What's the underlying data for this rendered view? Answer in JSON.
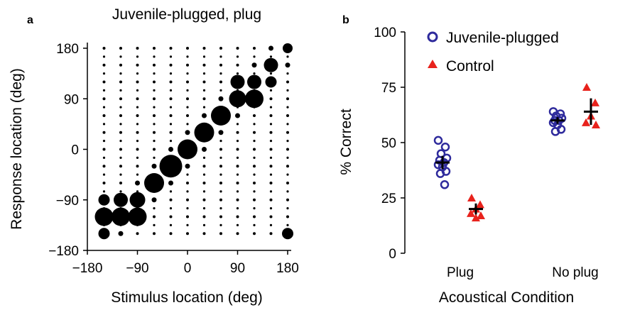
{
  "chart_data": [
    {
      "panel": "a",
      "type": "scatter",
      "title": "Juvenile-plugged, plug",
      "xlabel": "Stimulus location (deg)",
      "ylabel": "Response location (deg)",
      "xlim": [
        -180,
        180
      ],
      "ylim": [
        -180,
        180
      ],
      "xticks": [
        -180,
        -90,
        0,
        90,
        180
      ],
      "yticks": [
        -180,
        -90,
        0,
        90,
        180
      ],
      "xtick_labels": [
        "−180",
        "−90",
        "0",
        "90",
        "180"
      ],
      "ytick_labels": [
        "−180",
        "−90",
        "0",
        "90",
        "180"
      ],
      "grid_x": [
        -150,
        -120,
        -90,
        -60,
        -30,
        0,
        30,
        60,
        90,
        120,
        150,
        180
      ],
      "grid_y": [
        -150,
        -135,
        -120,
        -105,
        -90,
        -75,
        -60,
        -45,
        -30,
        -15,
        0,
        15,
        30,
        45,
        60,
        75,
        90,
        105,
        120,
        135,
        150,
        165,
        180
      ],
      "grid_on": false,
      "marker_sizes": [
        [
          1,
          1,
          1,
          1,
          1,
          1,
          1,
          1,
          1,
          1,
          1,
          1
        ],
        [
          1,
          1,
          1,
          1,
          1,
          1,
          1,
          1,
          1,
          1,
          1,
          1
        ],
        [
          1,
          1,
          1,
          1,
          1,
          1,
          1,
          1,
          1,
          1,
          1,
          1
        ],
        [
          1,
          1,
          1,
          1,
          1,
          1,
          1,
          1,
          1,
          1,
          1,
          1
        ],
        [
          1,
          1,
          1,
          1,
          1,
          1,
          1,
          1,
          1,
          1,
          1,
          1
        ],
        [
          1,
          1,
          1,
          1,
          1,
          1,
          1,
          1,
          1,
          1,
          1,
          1
        ],
        [
          1,
          1,
          1,
          1,
          1,
          1,
          1,
          1,
          1,
          1,
          1,
          1
        ],
        [
          1,
          1,
          1,
          1,
          1,
          1,
          1,
          1,
          1,
          1,
          1,
          1
        ],
        [
          1,
          1,
          1,
          1,
          1,
          1,
          1,
          1,
          1,
          1,
          1,
          1
        ],
        [
          1,
          1,
          1,
          1,
          1,
          1,
          1,
          1,
          1,
          1,
          1,
          1
        ],
        [
          1,
          1,
          1,
          1,
          1,
          1,
          1,
          1,
          1,
          1,
          1,
          1
        ],
        [
          1,
          1,
          1,
          1,
          1,
          1,
          1,
          1,
          1,
          1,
          1,
          1
        ],
        [
          1,
          1,
          1,
          1,
          1,
          1,
          1,
          1,
          1,
          1,
          1,
          1
        ],
        [
          1,
          1,
          1,
          1,
          1,
          1,
          1,
          1,
          1,
          1,
          1,
          1
        ],
        [
          1,
          1,
          1,
          1,
          1,
          1,
          1,
          1,
          1,
          1,
          1,
          1
        ],
        [
          1,
          1,
          1,
          1,
          1,
          1,
          1,
          1,
          1,
          1,
          1,
          1
        ],
        [
          1,
          1,
          1,
          1,
          1,
          1,
          1,
          1,
          1,
          1,
          1,
          1
        ],
        [
          1,
          1,
          1,
          1,
          1,
          1,
          1,
          1,
          1,
          1,
          1,
          1
        ],
        [
          1,
          1,
          1,
          1,
          1,
          1,
          1,
          1,
          1,
          1,
          1,
          1
        ],
        [
          1,
          1,
          1,
          1,
          1,
          1,
          1,
          1,
          1,
          1,
          1,
          1
        ],
        [
          1,
          1,
          1,
          1,
          1,
          1,
          1,
          1,
          1,
          1,
          1,
          1
        ],
        [
          1,
          1,
          1,
          1,
          1,
          1,
          1,
          1,
          1,
          1,
          1,
          1
        ],
        [
          1,
          1,
          1,
          1,
          1,
          1,
          1,
          1,
          1,
          1,
          1,
          1
        ]
      ],
      "points": [
        {
          "x": -150,
          "y": -120,
          "r": 13
        },
        {
          "x": -120,
          "y": -120,
          "r": 13
        },
        {
          "x": -90,
          "y": -120,
          "r": 13
        },
        {
          "x": -150,
          "y": -90,
          "r": 8
        },
        {
          "x": -120,
          "y": -90,
          "r": 10
        },
        {
          "x": -90,
          "y": -90,
          "r": 11
        },
        {
          "x": -60,
          "y": -60,
          "r": 14
        },
        {
          "x": -30,
          "y": -30,
          "r": 16
        },
        {
          "x": 0,
          "y": 0,
          "r": 14
        },
        {
          "x": 30,
          "y": 30,
          "r": 14
        },
        {
          "x": 60,
          "y": 60,
          "r": 14
        },
        {
          "x": 90,
          "y": 90,
          "r": 12
        },
        {
          "x": 120,
          "y": 90,
          "r": 13
        },
        {
          "x": 90,
          "y": 120,
          "r": 10
        },
        {
          "x": 120,
          "y": 120,
          "r": 10
        },
        {
          "x": 150,
          "y": 150,
          "r": 10
        },
        {
          "x": 150,
          "y": 120,
          "r": 8
        },
        {
          "x": -150,
          "y": -150,
          "r": 8
        },
        {
          "x": 180,
          "y": -150,
          "r": 8
        },
        {
          "x": 180,
          "y": 180,
          "r": 7
        }
      ]
    },
    {
      "panel": "b",
      "type": "scatter",
      "title": "",
      "xlabel": "Acoustical Condition",
      "ylabel": "% Correct",
      "categories": [
        "Plug",
        "No plug"
      ],
      "ylim": [
        0,
        100
      ],
      "yticks": [
        0,
        25,
        50,
        75,
        100
      ],
      "grid_on": false,
      "legend_position": "top-left",
      "series": [
        {
          "name": "Juvenile-plugged",
          "marker": "open-circle",
          "color": "#2e2a9c",
          "values": {
            "Plug": [
              51,
              48,
              45,
              43,
              42,
              41,
              40,
              39,
              37,
              36,
              31
            ],
            "No plug": [
              64,
              63,
              62,
              61,
              60,
              60,
              59,
              58,
              56,
              55
            ]
          },
          "means": {
            "Plug": 41,
            "No plug": 60
          },
          "err": {
            "Plug": 3,
            "No plug": 1.5
          }
        },
        {
          "name": "Control",
          "marker": "filled-triangle",
          "color": "#e8221c",
          "values": {
            "Plug": [
              25,
              22,
              20,
              18,
              17,
              16
            ],
            "No plug": [
              75,
              68,
              62,
              59,
              58
            ]
          },
          "means": {
            "Plug": 20,
            "No plug": 64
          },
          "err": {
            "Plug": 2.5,
            "No plug": 6
          }
        }
      ]
    }
  ],
  "panel_labels": {
    "a": "a",
    "b": "b"
  },
  "colors": {
    "circle": "#2e2a9c",
    "triangle": "#e8221c",
    "ink": "#000000"
  }
}
